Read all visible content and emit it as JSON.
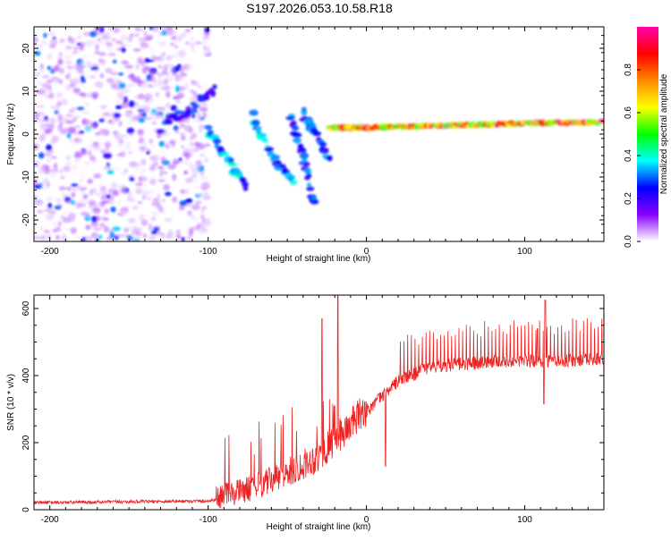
{
  "title": "S197.2026.053.10.58.R18",
  "spectrogram": {
    "type": "heatmap",
    "xlabel": "Height of straight line (km)",
    "ylabel": "Frequency (Hz)",
    "xlim": [
      -210,
      150
    ],
    "ylim": [
      -25,
      25
    ],
    "xticks": [
      -200,
      -100,
      0,
      100
    ],
    "yticks": [
      -20,
      -10,
      0,
      10,
      20
    ],
    "colorbar": {
      "label": "Normalized spectral amplitude",
      "range": [
        0,
        1
      ],
      "ticks": [
        "0.0",
        "0.2",
        "0.4",
        "0.6",
        "0.8"
      ],
      "tick_values": [
        0,
        0.2,
        0.4,
        0.6,
        0.8
      ],
      "colors": [
        "#ffffff",
        "#8800ff",
        "#0000ff",
        "#00ffff",
        "#00ff00",
        "#ffff00",
        "#ff8800",
        "#ff0000",
        "#ff00aa"
      ]
    },
    "features": [
      {
        "name": "noise",
        "x_range": [
          -210,
          -100
        ],
        "y_range": [
          -25,
          25
        ],
        "amplitude": 0.15
      },
      {
        "name": "branch-upper",
        "x": [
          -127,
          -110,
          -95
        ],
        "y": [
          3,
          6,
          11
        ],
        "amplitude": 0.25
      },
      {
        "name": "branch-steep-1",
        "x": [
          -100,
          -88,
          -75
        ],
        "y": [
          1,
          -6,
          -13
        ],
        "amplitude": 0.35
      },
      {
        "name": "branch-steep-2",
        "x": [
          -72,
          -60,
          -45
        ],
        "y": [
          4,
          -5,
          -12
        ],
        "amplitude": 0.35
      },
      {
        "name": "branch-steep-3",
        "x": [
          -48,
          -40,
          -33
        ],
        "y": [
          4,
          -5,
          -17
        ],
        "amplitude": 0.3
      },
      {
        "name": "branch-right",
        "x": [
          -40,
          -32,
          -22
        ],
        "y": [
          5,
          0,
          -7
        ],
        "amplitude": 0.3
      },
      {
        "name": "carrier-line",
        "x": [
          -22,
          0,
          50,
          100,
          150
        ],
        "y": [
          1.5,
          1.5,
          2,
          2.5,
          2.8
        ],
        "amplitude": 0.9
      }
    ]
  },
  "snr": {
    "type": "line",
    "xlabel": "Height of straight line (km)",
    "ylabel": "SNR (10 * v/v)",
    "xlim": [
      -210,
      150
    ],
    "ylim": [
      0,
      640
    ],
    "xticks": [
      -200,
      -100,
      0,
      100
    ],
    "yticks": [
      0,
      200,
      400,
      600
    ],
    "line_color": "#ee2222",
    "trend": {
      "x": [
        -210,
        -100,
        -90,
        -70,
        -50,
        -30,
        -15,
        0,
        20,
        40,
        60,
        80,
        100,
        120,
        150
      ],
      "y": [
        20,
        25,
        35,
        60,
        100,
        150,
        220,
        290,
        380,
        420,
        430,
        440,
        440,
        440,
        445
      ]
    },
    "spikes": [
      {
        "x": -18,
        "y": 640
      },
      {
        "x": -28,
        "y": 570
      },
      {
        "x": 113,
        "y": 625
      },
      {
        "x": 108,
        "y": 540
      }
    ],
    "dips": [
      {
        "x": 112,
        "y": 315
      },
      {
        "x": 12,
        "y": 130
      }
    ]
  }
}
